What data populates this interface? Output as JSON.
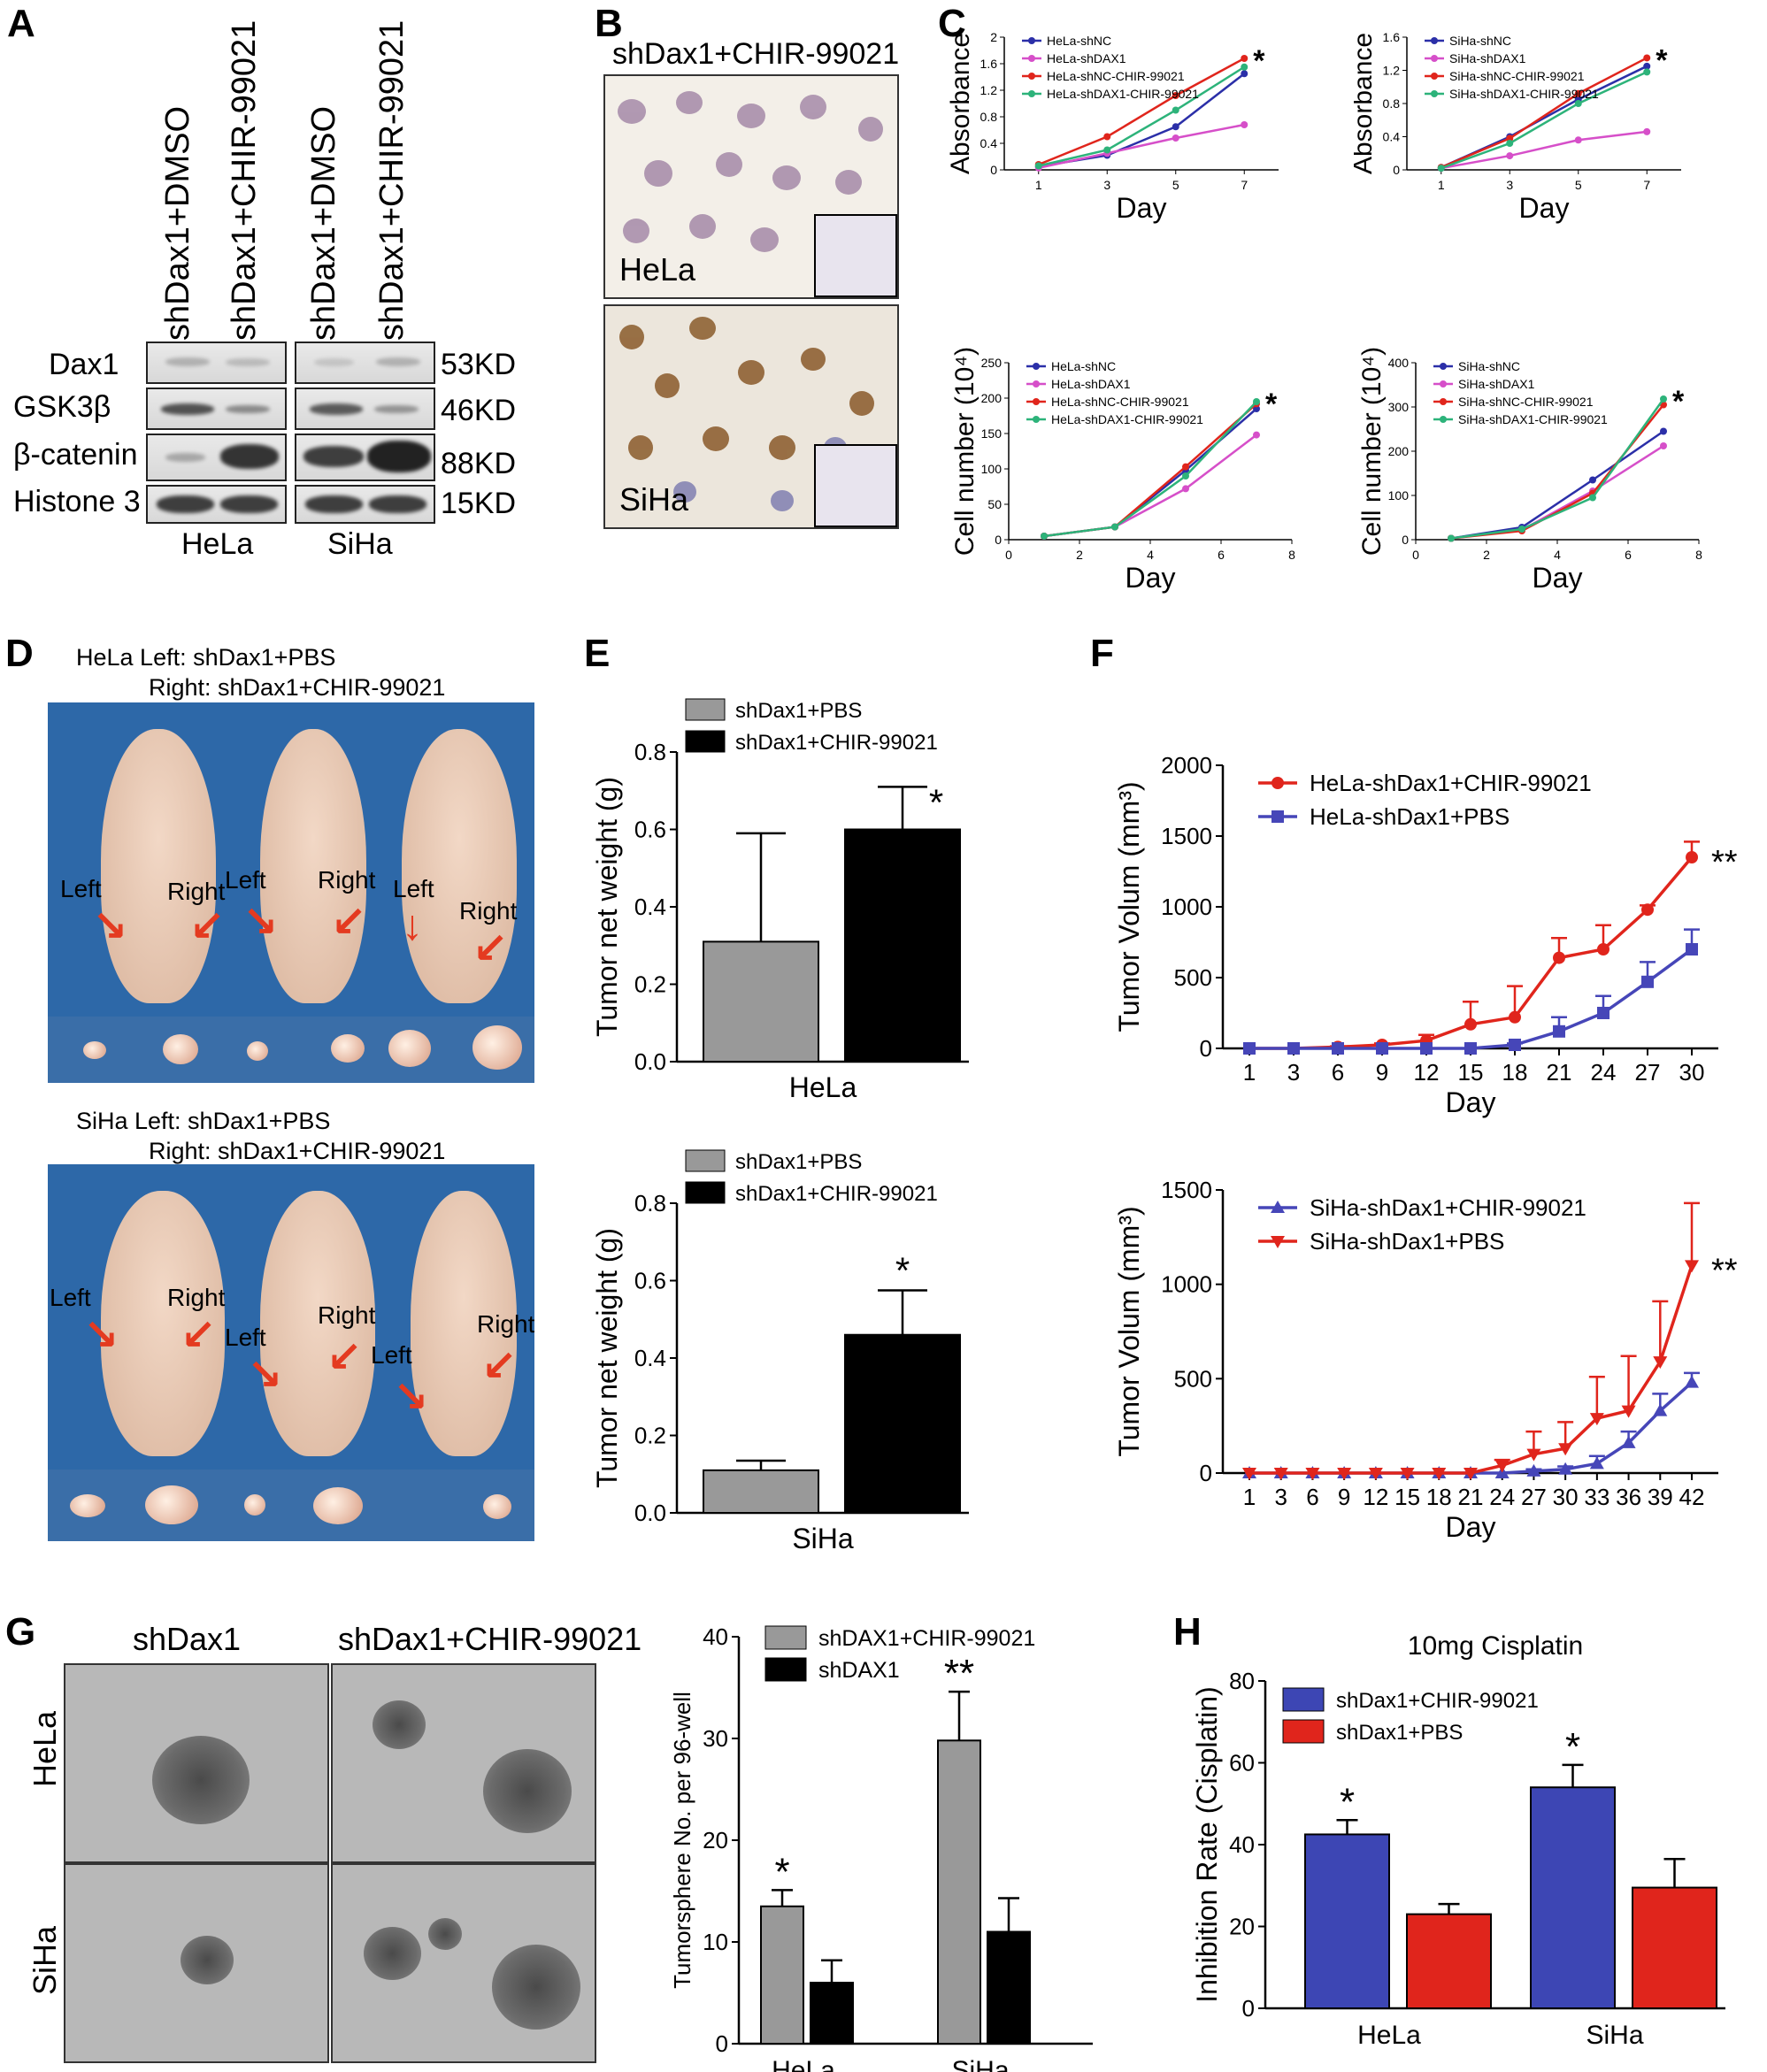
{
  "panels": {
    "A": "A",
    "B": "B",
    "C": "C",
    "D": "D",
    "E": "E",
    "F": "F",
    "G": "G",
    "H": "H"
  },
  "panelA": {
    "lanes": [
      "shDax1+DMSO",
      "shDax1+CHIR-99021",
      "shDax1+DMSO",
      "shDax1+CHIR-99021"
    ],
    "proteins": [
      "Dax1",
      "GSK3β",
      "β-catenin",
      "Histone 3"
    ],
    "sizes": [
      "53KD",
      "46KD",
      "88KD",
      "15KD"
    ],
    "cells": [
      "HeLa",
      "SiHa"
    ]
  },
  "panelB": {
    "title": "shDax1+CHIR-99021",
    "top": "HeLa",
    "bottom": "SiHa"
  },
  "panelD": {
    "hela_line1": "HeLa   Left: shDax1+PBS",
    "hela_line2": "Right: shDax1+CHIR-99021",
    "siha_line1": "SiHa   Left: shDax1+PBS",
    "siha_line2": "Right: shDax1+CHIR-99021",
    "left": "Left",
    "right": "Right"
  },
  "panelG": {
    "col1": "shDax1",
    "col2": "shDax1+CHIR-99021",
    "row1": "HeLa",
    "row2": "SiHa"
  },
  "chart_data": [
    {
      "id": "c1",
      "type": "line",
      "xlabel": "Day",
      "ylabel": "Absorbance",
      "xticks": [
        1,
        3,
        5,
        7
      ],
      "yticks": [
        "0",
        "0.4",
        "0.8",
        "1.2",
        "1.6",
        "2"
      ],
      "xlim": [
        0,
        8
      ],
      "ylim": [
        0,
        2
      ],
      "x": [
        1,
        3,
        5,
        7
      ],
      "annotation": "*",
      "series": [
        {
          "name": "HeLa-shNC",
          "color": "#2b2fa8",
          "values": [
            0.05,
            0.22,
            0.65,
            1.45
          ]
        },
        {
          "name": "HeLa-shDAX1",
          "color": "#d64fc9",
          "values": [
            0.03,
            0.25,
            0.48,
            0.68
          ]
        },
        {
          "name": "HeLa-shNC-CHIR-99021",
          "color": "#e0251c",
          "values": [
            0.08,
            0.5,
            1.12,
            1.68
          ]
        },
        {
          "name": "HeLa-shDAX1-CHIR-99021",
          "color": "#2db37a",
          "values": [
            0.06,
            0.3,
            0.9,
            1.55
          ]
        }
      ]
    },
    {
      "id": "c2",
      "type": "line",
      "xlabel": "Day",
      "ylabel": "Absorbance",
      "xticks": [
        1,
        3,
        5,
        7
      ],
      "yticks": [
        "0",
        "0.4",
        "0.8",
        "1.2",
        "1.6"
      ],
      "xlim": [
        0,
        8
      ],
      "ylim": [
        0,
        1.6
      ],
      "x": [
        1,
        3,
        5,
        7
      ],
      "annotation": "*",
      "series": [
        {
          "name": "SiHa-shNC",
          "color": "#2b2fa8",
          "values": [
            0.03,
            0.4,
            0.85,
            1.25
          ]
        },
        {
          "name": "SiHa-shDAX1",
          "color": "#d64fc9",
          "values": [
            0.02,
            0.17,
            0.36,
            0.46
          ]
        },
        {
          "name": "SiHa-shNC-CHIR-99021",
          "color": "#e0251c",
          "values": [
            0.03,
            0.38,
            0.92,
            1.35
          ]
        },
        {
          "name": "SiHa-shDAX1-CHIR-99021",
          "color": "#2db37a",
          "values": [
            0.02,
            0.32,
            0.8,
            1.18
          ]
        }
      ]
    },
    {
      "id": "c3",
      "type": "line",
      "xlabel": "Day",
      "ylabel": "Cell number (10⁴)",
      "xticks": [
        0,
        2,
        4,
        6,
        8
      ],
      "yticks": [
        "0",
        "50",
        "100",
        "150",
        "200",
        "250"
      ],
      "xlim": [
        0,
        8
      ],
      "ylim": [
        0,
        250
      ],
      "x": [
        1,
        3,
        5,
        7
      ],
      "annotation": "*",
      "series": [
        {
          "name": "HeLa-shNC",
          "color": "#2b2fa8",
          "values": [
            5,
            18,
            98,
            185
          ]
        },
        {
          "name": "HeLa-shDAX1",
          "color": "#d64fc9",
          "values": [
            5,
            18,
            72,
            148
          ]
        },
        {
          "name": "HeLa-shNC-CHIR-99021",
          "color": "#e0251c",
          "values": [
            5,
            18,
            103,
            192
          ]
        },
        {
          "name": "HeLa-shDAX1-CHIR-99021",
          "color": "#2db37a",
          "values": [
            5,
            18,
            90,
            195
          ]
        }
      ]
    },
    {
      "id": "c4",
      "type": "line",
      "xlabel": "Day",
      "ylabel": "Cell number (10⁴)",
      "xticks": [
        0,
        2,
        4,
        6,
        8
      ],
      "yticks": [
        "0",
        "100",
        "200",
        "300",
        "400"
      ],
      "xlim": [
        0,
        8
      ],
      "ylim": [
        0,
        400
      ],
      "x": [
        1,
        3,
        5,
        7
      ],
      "annotation": "*",
      "series": [
        {
          "name": "SiHa-shNC",
          "color": "#2b2fa8",
          "values": [
            3,
            28,
            135,
            245
          ]
        },
        {
          "name": "SiHa-shDAX1",
          "color": "#d64fc9",
          "values": [
            3,
            22,
            110,
            212
          ]
        },
        {
          "name": "SiHa-shNC-CHIR-99021",
          "color": "#e0251c",
          "values": [
            3,
            20,
            105,
            305
          ]
        },
        {
          "name": "SiHa-shDAX1-CHIR-99021",
          "color": "#2db37a",
          "values": [
            3,
            24,
            95,
            318
          ]
        }
      ]
    },
    {
      "id": "e1",
      "type": "bar",
      "categories": [
        "shDax1+PBS",
        "shDax1+CHIR-99021"
      ],
      "values": [
        0.31,
        0.6
      ],
      "errors": [
        0.28,
        0.11
      ],
      "colors": [
        "#999999",
        "#000000"
      ],
      "xlabel": "HeLa",
      "ylabel": "Tumor net weight (g)",
      "ylim": [
        0,
        0.8
      ],
      "yticks": [
        "0.0",
        "0.2",
        "0.4",
        "0.6",
        "0.8"
      ],
      "annotations": [
        "",
        "*"
      ]
    },
    {
      "id": "e2",
      "type": "bar",
      "categories": [
        "shDax1+PBS",
        "shDax1+CHIR-99021"
      ],
      "values": [
        0.11,
        0.46
      ],
      "errors": [
        0.025,
        0.115
      ],
      "colors": [
        "#999999",
        "#000000"
      ],
      "xlabel": "SiHa",
      "ylabel": "Tumor net weight (g)",
      "ylim": [
        0,
        0.8
      ],
      "yticks": [
        "0.0",
        "0.2",
        "0.4",
        "0.6",
        "0.8"
      ],
      "annotations": [
        "",
        "*"
      ]
    },
    {
      "id": "f1",
      "type": "line",
      "xlabel": "Day",
      "ylabel": "Tumor Volum (mm³)",
      "x": [
        1,
        3,
        6,
        9,
        12,
        15,
        18,
        21,
        24,
        27,
        30
      ],
      "xticks": [
        1,
        3,
        6,
        9,
        12,
        15,
        18,
        21,
        24,
        27,
        30
      ],
      "ylim": [
        0,
        2000
      ],
      "yticks": [
        "0",
        "500",
        "1000",
        "1500",
        "2000"
      ],
      "annotation": "**",
      "series": [
        {
          "name": "HeLa-shDax1+CHIR-99021",
          "color": "#e0251c",
          "marker": "circle",
          "values": [
            0,
            0,
            10,
            25,
            55,
            170,
            220,
            640,
            700,
            980,
            1350
          ],
          "errors": [
            0,
            0,
            5,
            10,
            40,
            160,
            220,
            140,
            170,
            30,
            110
          ]
        },
        {
          "name": "HeLa-shDax1+PBS",
          "color": "#4646b8",
          "marker": "square",
          "values": [
            0,
            0,
            0,
            0,
            0,
            0,
            25,
            120,
            250,
            470,
            700
          ],
          "errors": [
            0,
            0,
            0,
            0,
            0,
            0,
            10,
            100,
            120,
            140,
            140
          ]
        }
      ]
    },
    {
      "id": "f2",
      "type": "line",
      "xlabel": "Day",
      "ylabel": "Tumor Volum (mm³)",
      "x": [
        1,
        3,
        6,
        9,
        12,
        15,
        18,
        21,
        24,
        27,
        30,
        33,
        36,
        39,
        42
      ],
      "xticks": [
        1,
        3,
        6,
        9,
        12,
        15,
        18,
        21,
        24,
        27,
        30,
        33,
        36,
        39,
        42
      ],
      "ylim": [
        0,
        1500
      ],
      "yticks": [
        "0",
        "500",
        "1000",
        "1500"
      ],
      "annotation": "**",
      "series": [
        {
          "name": "SiHa-shDax1+CHIR-99021",
          "color": "#4646b8",
          "marker": "triangle-up",
          "values": [
            0,
            0,
            0,
            0,
            0,
            0,
            0,
            0,
            0,
            10,
            20,
            50,
            160,
            330,
            480
          ],
          "errors": [
            0,
            0,
            0,
            0,
            0,
            0,
            0,
            0,
            0,
            10,
            15,
            40,
            60,
            90,
            50
          ]
        },
        {
          "name": "SiHa-shDax1+PBS",
          "color": "#e0251c",
          "marker": "triangle-down",
          "values": [
            0,
            0,
            0,
            0,
            0,
            0,
            0,
            0,
            40,
            100,
            130,
            290,
            330,
            590,
            1100
          ],
          "errors": [
            0,
            0,
            0,
            0,
            0,
            0,
            0,
            0,
            30,
            120,
            140,
            220,
            290,
            320,
            330
          ]
        }
      ]
    },
    {
      "id": "g1",
      "type": "bar",
      "categories": [
        "HeLa",
        "SiHa"
      ],
      "series": [
        {
          "name": "shDAX1+CHIR-99021",
          "color": "#999999",
          "values": [
            13.5,
            29.8
          ],
          "errors": [
            1.6,
            4.8
          ]
        },
        {
          "name": "shDAX1",
          "color": "#000000",
          "values": [
            6,
            11
          ],
          "errors": [
            2.2,
            3.3
          ]
        }
      ],
      "ylabel": "Tumorsphere No. per 96-well",
      "ylim": [
        0,
        40
      ],
      "yticks": [
        "0",
        "10",
        "20",
        "30",
        "40"
      ],
      "annotations": [
        "*",
        "**"
      ]
    },
    {
      "id": "h1",
      "type": "bar",
      "title": "10mg Cisplatin",
      "categories": [
        "HeLa",
        "SiHa"
      ],
      "series": [
        {
          "name": "shDax1+CHIR-99021",
          "color": "#3d46b4",
          "values": [
            42.5,
            54
          ],
          "errors": [
            3.5,
            5.5
          ]
        },
        {
          "name": "shDax1+PBS",
          "color": "#e0251c",
          "values": [
            23,
            29.5
          ],
          "errors": [
            2.5,
            7
          ]
        }
      ],
      "ylabel": "Inhibition Rate (Cisplatin)",
      "ylim": [
        0,
        80
      ],
      "yticks": [
        "0",
        "20",
        "40",
        "60",
        "80"
      ],
      "annotations": [
        "*",
        "*"
      ]
    }
  ]
}
